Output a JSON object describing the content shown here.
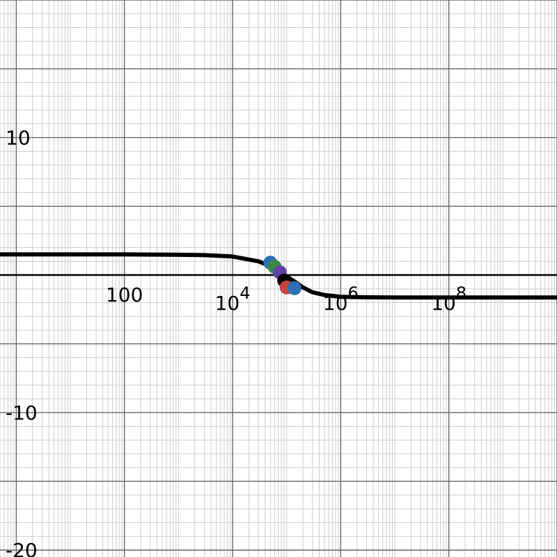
{
  "chart_data": {
    "type": "line",
    "title": "",
    "xlabel": "",
    "ylabel": "",
    "x_scale": "log",
    "y_scale": "linear",
    "xlim": [
      0.5,
      10000000000
    ],
    "ylim": [
      -20.5,
      20
    ],
    "grid": true,
    "legend": "none",
    "x_ticks": [
      {
        "base": "100",
        "exp": "",
        "value": 100
      },
      {
        "base": "10",
        "exp": "4",
        "value": 10000
      },
      {
        "base": "10",
        "exp": "6",
        "value": 1000000
      },
      {
        "base": "10",
        "exp": "8",
        "value": 100000000
      }
    ],
    "y_ticks": [
      {
        "label": "10",
        "value": 10
      },
      {
        "label": "-10",
        "value": -10
      },
      {
        "label": "-20",
        "value": -20
      }
    ],
    "series": [
      {
        "color": "#000000",
        "x": [
          0.5,
          1,
          10,
          100,
          1000,
          3000,
          10000,
          30000,
          60000,
          100000,
          150000,
          200000,
          300000,
          500000,
          1000000,
          3000000,
          10000000,
          100000000,
          1000000000,
          10000000000
        ],
        "y": [
          1.5,
          1.5,
          1.5,
          1.5,
          1.48,
          1.45,
          1.35,
          1.0,
          0.55,
          -0.1,
          -0.55,
          -0.9,
          -1.25,
          -1.45,
          -1.58,
          -1.62,
          -1.63,
          -1.63,
          -1.63,
          -1.63
        ]
      }
    ],
    "points": [
      {
        "x": 50000,
        "y": 0.9,
        "color": "#2d70b3"
      },
      {
        "x": 60000,
        "y": 0.6,
        "color": "#388c46"
      },
      {
        "x": 75000,
        "y": 0.2,
        "color": "#6042a6"
      },
      {
        "x": 90000,
        "y": -0.4,
        "color": "#000000"
      },
      {
        "x": 100000,
        "y": -0.9,
        "color": "#c74440"
      },
      {
        "x": 140000,
        "y": -0.95,
        "color": "#2d70b3"
      }
    ],
    "colors": {
      "background": "#ffffff",
      "major_grid": "#666666",
      "minor_grid": "#cccccc",
      "axis": "#000000",
      "curve": "#000000"
    }
  }
}
